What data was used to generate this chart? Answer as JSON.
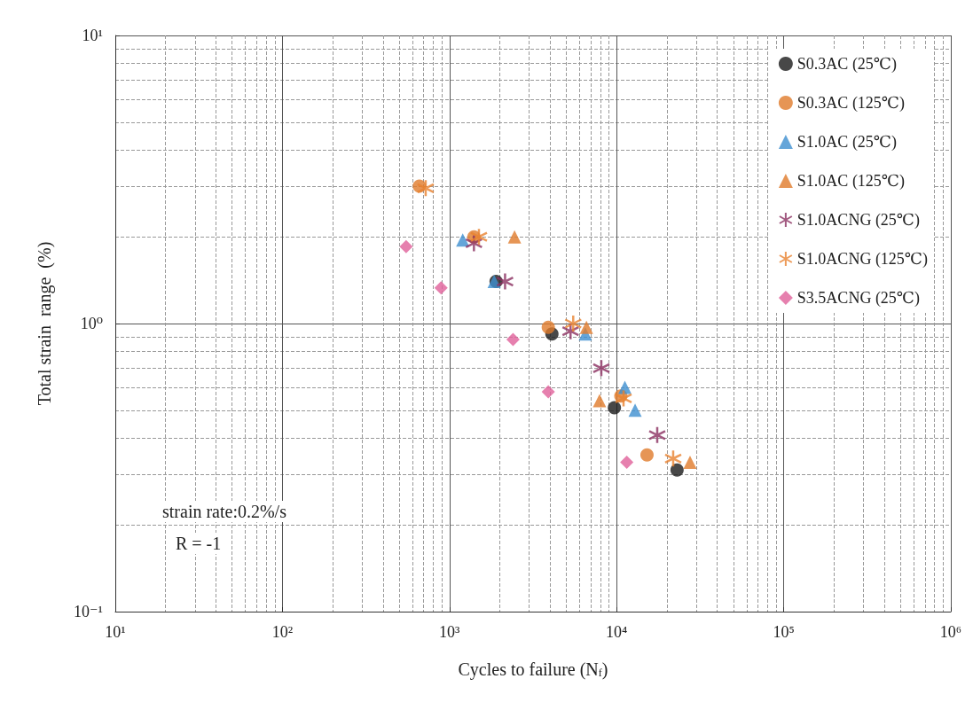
{
  "chart_data": {
    "type": "scatter",
    "xlabel": "Cycles to failure (N$_{f}$)",
    "ylabel": "Total strain  range  (%)",
    "log": "xy",
    "xlim": [
      10,
      1000000
    ],
    "ylim": [
      0.1,
      10
    ],
    "xticks": [
      {
        "value": 10,
        "label": "10¹"
      },
      {
        "value": 100,
        "label": "10²"
      },
      {
        "value": 1000,
        "label": "10³"
      },
      {
        "value": 10000,
        "label": "10⁴"
      },
      {
        "value": 100000,
        "label": "10⁵"
      },
      {
        "value": 1000000,
        "label": "10⁶"
      }
    ],
    "yticks": [
      {
        "value": 0.1,
        "label": "10⁻¹"
      },
      {
        "value": 1,
        "label": "10⁰"
      },
      {
        "value": 10,
        "label": "10¹"
      }
    ],
    "grid": true,
    "legend": "top right",
    "annotations": [
      "strain rate:0.2%/s",
      "R = -1"
    ],
    "series": [
      {
        "name": "S0.3AC (25℃)",
        "color": "#1a1a1a",
        "marker": "circle",
        "x": [
          1900,
          4100,
          9700,
          23000
        ],
        "values": [
          1.4,
          0.92,
          0.51,
          0.31
        ]
      },
      {
        "name": "S0.3AC (125℃)",
        "color": "#e07b2a",
        "marker": "circle",
        "x": [
          660,
          1400,
          3900,
          10600,
          15200
        ],
        "values": [
          3.0,
          2.0,
          0.97,
          0.56,
          0.35
        ]
      },
      {
        "name": "S1.0AC (25℃)",
        "color": "#3d8fd0",
        "marker": "triangle",
        "x": [
          1200,
          1850,
          6500,
          11200,
          12900
        ],
        "values": [
          1.95,
          1.4,
          0.92,
          0.6,
          0.5
        ]
      },
      {
        "name": "S1.0AC (125℃)",
        "color": "#e07b2a",
        "marker": "triangle",
        "x": [
          2450,
          6600,
          7900,
          27500
        ],
        "values": [
          2.0,
          0.97,
          0.54,
          0.33
        ]
      },
      {
        "name": "S1.0ACNG (25℃)",
        "color": "#8b3060",
        "marker": "cross",
        "x": [
          1400,
          2150,
          5300,
          8100,
          17500
        ],
        "values": [
          1.9,
          1.4,
          0.94,
          0.7,
          0.41
        ]
      },
      {
        "name": "S1.0ACNG (125℃)",
        "color": "#e8822f",
        "marker": "cross",
        "x": [
          720,
          1500,
          5500,
          11000,
          21800
        ],
        "values": [
          2.95,
          2.0,
          1.0,
          0.55,
          0.34
        ]
      },
      {
        "name": "S3.5ACNG (25℃)",
        "color": "#e0609a",
        "marker": "diamond",
        "x": [
          550,
          890,
          2400,
          3900,
          11500
        ],
        "values": [
          1.85,
          1.33,
          0.88,
          0.58,
          0.33
        ]
      }
    ]
  }
}
